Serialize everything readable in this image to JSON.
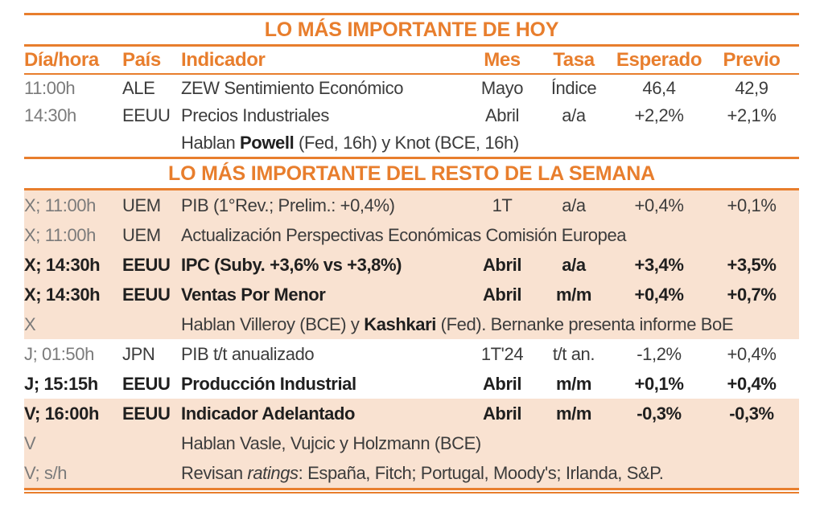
{
  "colors": {
    "accent_orange": "#e87e2d",
    "row_highlight": "#f9e2d1",
    "body_text": "#3c3c3c",
    "bold_text": "#1f1f1f",
    "muted_day_text": "#7b7b7b"
  },
  "headers": [
    "Día/hora",
    "País",
    "Indicador",
    "Mes",
    "Tasa",
    "Esperado",
    "Previo"
  ],
  "sections": [
    {
      "title": "LO MÁS IMPORTANTE DE HOY",
      "rows": [
        {
          "day": "11:00h",
          "day_muted": true,
          "country": "ALE",
          "indicator": [
            {
              "t": "ZEW Sentimiento Económico"
            }
          ],
          "mes": "Mayo",
          "tasa": "Índice",
          "esperado": "46,4",
          "previo": "42,9"
        },
        {
          "day": "14:30h",
          "day_muted": true,
          "country": "EEUU",
          "indicator": [
            {
              "t": "Precios Industriales"
            }
          ],
          "mes": "Abril",
          "tasa": "a/a",
          "esperado": "+2,2%",
          "previo": "+2,1%"
        },
        {
          "day": "",
          "country": "",
          "indicator": [
            {
              "t": "Hablan "
            },
            {
              "t": "Powell",
              "b": true
            },
            {
              "t": " (Fed, 16h) y Knot (BCE, 16h)"
            }
          ],
          "span": true
        }
      ]
    },
    {
      "title": "LO MÁS IMPORTANTE DEL RESTO DE LA SEMANA",
      "rows": [
        {
          "day": "X; 11:00h",
          "day_muted": true,
          "country": "UEM",
          "indicator": [
            {
              "t": "PIB (1°Rev.; Prelim.: +0,4%)"
            }
          ],
          "mes": "1T",
          "tasa": "a/a",
          "esperado": "+0,4%",
          "previo": "+0,1%",
          "highlight": true
        },
        {
          "day": "X; 11:00h",
          "day_muted": true,
          "country": "UEM",
          "indicator": [
            {
              "t": "Actualización Perspectivas Económicas Comisión Europea"
            }
          ],
          "span": true,
          "highlight": true
        },
        {
          "day": "X; 14:30h",
          "country": "EEUU",
          "indicator": [
            {
              "t": "IPC (Suby. +3,6% vs +3,8%)"
            }
          ],
          "mes": "Abril",
          "tasa": "a/a",
          "esperado": "+3,4%",
          "previo": "+3,5%",
          "bold": true,
          "highlight": true
        },
        {
          "day": "X; 14:30h",
          "country": "EEUU",
          "indicator": [
            {
              "t": "Ventas Por Menor"
            }
          ],
          "mes": "Abril",
          "tasa": "m/m",
          "esperado": "+0,4%",
          "previo": "+0,7%",
          "bold": true,
          "highlight": true
        },
        {
          "day": "X",
          "day_muted": true,
          "country": "",
          "indicator": [
            {
              "t": "Hablan Villeroy (BCE) y "
            },
            {
              "t": "Kashkari",
              "b": true
            },
            {
              "t": " (Fed). Bernanke presenta informe BoE"
            }
          ],
          "span": true,
          "highlight": true
        },
        {
          "day": "J; 01:50h",
          "day_muted": true,
          "country": "JPN",
          "indicator": [
            {
              "t": "PIB t/t anualizado"
            }
          ],
          "mes": "1T'24",
          "tasa": "t/t an.",
          "esperado": "-1,2%",
          "previo": "+0,4%"
        },
        {
          "day": "J; 15:15h",
          "country": "EEUU",
          "indicator": [
            {
              "t": "Producción Industrial"
            }
          ],
          "mes": "Abril",
          "tasa": "m/m",
          "esperado": "+0,1%",
          "previo": "+0,4%",
          "bold": true
        },
        {
          "day": "V; 16:00h",
          "country": "EEUU",
          "indicator": [
            {
              "t": "Indicador Adelantado"
            }
          ],
          "mes": "Abril",
          "tasa": "m/m",
          "esperado": "-0,3%",
          "previo": "-0,3%",
          "bold": true,
          "highlight": true
        },
        {
          "day": "V",
          "day_muted": true,
          "country": "",
          "indicator": [
            {
              "t": "Hablan Vasle, Vujcic y Holzmann (BCE)"
            }
          ],
          "span": true,
          "highlight": true
        },
        {
          "day": "V; s/h",
          "day_muted": true,
          "country": "",
          "indicator": [
            {
              "t": "Revisan "
            },
            {
              "t": "ratings",
              "i": true
            },
            {
              "t": ": España, Fitch; Portugal, Moody's; Irlanda, S&P."
            }
          ],
          "span": true,
          "highlight": true
        }
      ]
    }
  ]
}
